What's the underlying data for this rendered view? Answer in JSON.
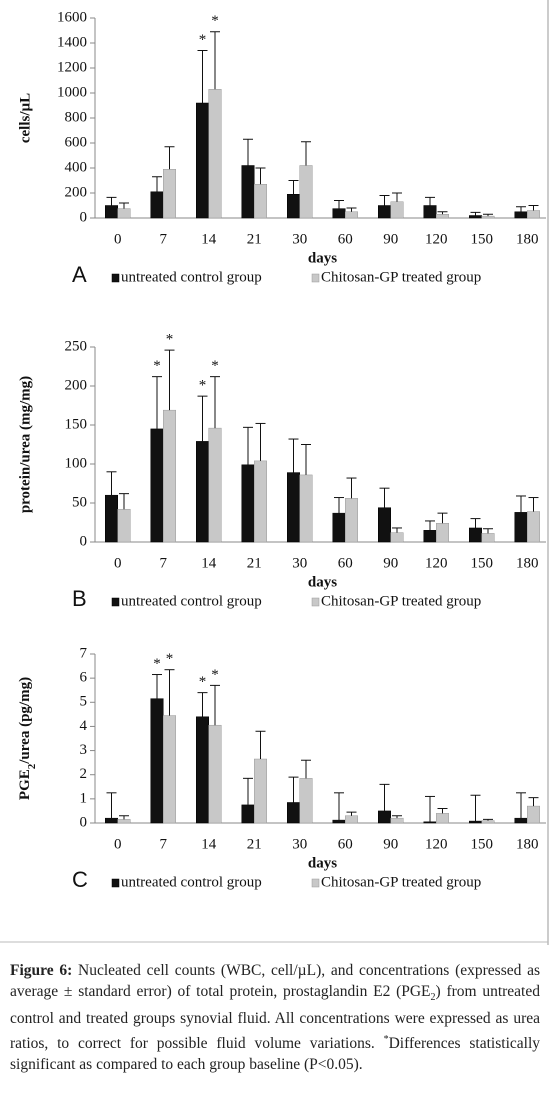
{
  "chart_data": [
    {
      "type": "bar",
      "panel": "A",
      "ylabel": "cells/µL",
      "xlabel": "days",
      "categories": [
        "0",
        "7",
        "14",
        "21",
        "30",
        "60",
        "90",
        "120",
        "150",
        "180"
      ],
      "ylim": [
        0,
        1600
      ],
      "yticks": [
        0,
        200,
        400,
        600,
        800,
        1000,
        1200,
        1400,
        1600
      ],
      "series": [
        {
          "name": "untreated control group",
          "color": "#111111",
          "values": [
            100,
            210,
            920,
            420,
            190,
            75,
            100,
            100,
            20,
            50
          ],
          "errors": [
            65,
            120,
            420,
            210,
            110,
            65,
            80,
            65,
            25,
            40
          ],
          "marker_labels": [
            null,
            null,
            "*",
            null,
            null,
            null,
            null,
            null,
            null,
            null
          ]
        },
        {
          "name": "Chitosan-GP treated group",
          "color": "#c8c8c8",
          "values": [
            75,
            390,
            1030,
            270,
            420,
            50,
            130,
            30,
            15,
            60
          ],
          "errors": [
            45,
            180,
            460,
            130,
            190,
            30,
            70,
            20,
            15,
            40
          ],
          "marker_labels": [
            null,
            null,
            "*",
            null,
            null,
            null,
            null,
            null,
            null,
            null
          ]
        }
      ]
    },
    {
      "type": "bar",
      "panel": "B",
      "ylabel": "protein/urea (mg/mg)",
      "xlabel": "days",
      "categories": [
        "0",
        "7",
        "14",
        "21",
        "30",
        "60",
        "90",
        "120",
        "150",
        "180"
      ],
      "ylim": [
        0,
        250
      ],
      "yticks": [
        0,
        50,
        100,
        150,
        200,
        250
      ],
      "series": [
        {
          "name": "untreated control group",
          "color": "#111111",
          "values": [
            60,
            145,
            129,
            99,
            89,
            37,
            44,
            15,
            18,
            38
          ],
          "errors": [
            30,
            67,
            58,
            48,
            43,
            20,
            25,
            12,
            12,
            21
          ],
          "marker_labels": [
            null,
            "*",
            "*",
            null,
            null,
            null,
            null,
            null,
            null,
            null
          ]
        },
        {
          "name": "Chitosan-GP treated group",
          "color": "#c8c8c8",
          "values": [
            42,
            169,
            146,
            104,
            86,
            56,
            12,
            24,
            11,
            39
          ],
          "errors": [
            20,
            77,
            66,
            48,
            39,
            26,
            6,
            13,
            6,
            18
          ],
          "marker_labels": [
            null,
            "*",
            "*",
            null,
            null,
            null,
            null,
            null,
            null,
            null
          ]
        }
      ]
    },
    {
      "type": "bar",
      "panel": "C",
      "ylabel": [
        "PGE",
        "2",
        "/urea (pg/mg)"
      ],
      "xlabel": "days",
      "categories": [
        "0",
        "7",
        "14",
        "21",
        "30",
        "60",
        "90",
        "120",
        "150",
        "180"
      ],
      "ylim": [
        0,
        7
      ],
      "yticks": [
        0,
        1,
        2,
        3,
        4,
        5,
        6,
        7
      ],
      "series": [
        {
          "name": "untreated control group",
          "color": "#111111",
          "values": [
            0.2,
            5.15,
            4.4,
            0.75,
            0.85,
            0.12,
            0.5,
            0.05,
            0.08,
            0.2
          ],
          "errors": [
            1.05,
            1.0,
            1.0,
            1.1,
            1.05,
            1.13,
            1.1,
            1.05,
            1.07,
            1.05
          ],
          "marker_labels": [
            null,
            "*",
            "*",
            null,
            null,
            null,
            null,
            null,
            null,
            null
          ]
        },
        {
          "name": "Chitosan-GP treated group",
          "color": "#c8c8c8",
          "values": [
            0.15,
            4.45,
            4.05,
            2.65,
            1.85,
            0.3,
            0.2,
            0.4,
            0.1,
            0.7
          ],
          "errors": [
            0.15,
            1.9,
            1.65,
            1.15,
            0.75,
            0.15,
            0.1,
            0.2,
            0.05,
            0.35
          ],
          "marker_labels": [
            null,
            "*",
            "*",
            null,
            null,
            null,
            null,
            null,
            null,
            null
          ]
        }
      ]
    }
  ],
  "caption": {
    "label": "Figure 6:",
    "text": [
      "Nucleated cell counts (WBC, cell/µL), and concentrations (expressed as average ± standard error) of total protein, prostaglandin E2 (PGE",
      "2",
      ") from untreated control and treated groups synovial fluid. All concentrations were expressed as urea ratios, to correct for possible fluid volume variations. ",
      "*",
      "Differences statistically significant as compared to each group baseline (P<0.05)."
    ]
  }
}
